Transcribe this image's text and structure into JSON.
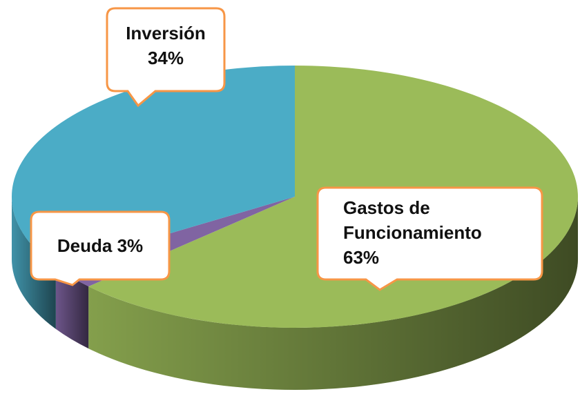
{
  "chart_data": {
    "type": "pie",
    "categories": [
      "Gastos de Funcionamiento",
      "Deuda",
      "Inversión"
    ],
    "values": [
      63,
      3,
      34
    ],
    "value_labels": [
      "63%",
      "3%",
      "34%"
    ],
    "colors": [
      "#9bbb59",
      "#8064a2",
      "#4bacc6"
    ]
  }
}
